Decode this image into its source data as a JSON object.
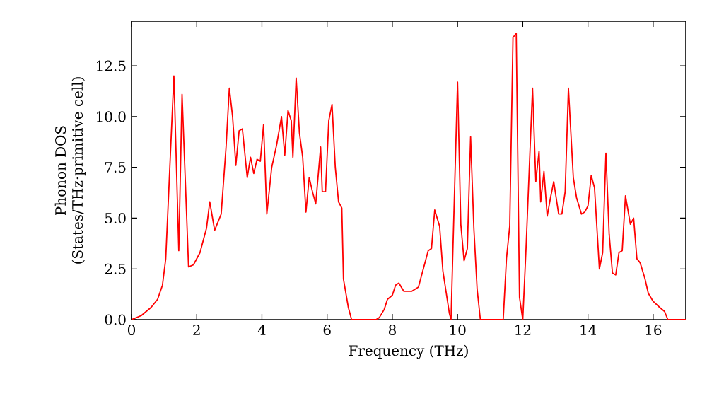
{
  "chart_data": {
    "type": "line",
    "xlabel": "Frequency (THz)",
    "ylabel": "Phonon DOS\n(States/THz·primitive cell)",
    "xlim": [
      0,
      17
    ],
    "ylim": [
      0,
      14.7
    ],
    "xticks": [
      0,
      2,
      4,
      6,
      8,
      10,
      12,
      14,
      16
    ],
    "yticks": [
      {
        "value": 0,
        "label": "0.0"
      },
      {
        "value": 2.5,
        "label": "2.5"
      },
      {
        "value": 5,
        "label": "5.0"
      },
      {
        "value": 7.5,
        "label": "7.5"
      },
      {
        "value": 10,
        "label": "10.0"
      },
      {
        "value": 12.5,
        "label": "12.5"
      }
    ],
    "marker": "none",
    "line_style": "solid",
    "series": [
      {
        "color": "#ff0000",
        "x": [
          0,
          0.3,
          0.6,
          0.8,
          0.95,
          1.05,
          1.3,
          1.45,
          1.55,
          1.75,
          1.9,
          2.1,
          2.3,
          2.4,
          2.55,
          2.75,
          2.9,
          3.0,
          3.1,
          3.2,
          3.3,
          3.4,
          3.55,
          3.65,
          3.75,
          3.85,
          3.95,
          4.05,
          4.15,
          4.3,
          4.45,
          4.6,
          4.7,
          4.8,
          4.9,
          4.95,
          5.05,
          5.15,
          5.25,
          5.35,
          5.45,
          5.55,
          5.65,
          5.8,
          5.85,
          5.95,
          6.05,
          6.15,
          6.25,
          6.35,
          6.45,
          6.5,
          6.65,
          6.75,
          7.5,
          7.6,
          7.75,
          7.85,
          8.0,
          8.1,
          8.2,
          8.35,
          8.6,
          8.8,
          8.95,
          9.1,
          9.2,
          9.3,
          9.45,
          9.55,
          9.75,
          9.8,
          9.85,
          10.0,
          10.1,
          10.2,
          10.3,
          10.4,
          10.5,
          10.6,
          10.7,
          11.4,
          11.5,
          11.6,
          11.7,
          11.8,
          11.9,
          12.0,
          12.1,
          12.3,
          12.4,
          12.5,
          12.55,
          12.65,
          12.75,
          12.85,
          12.95,
          13.1,
          13.2,
          13.3,
          13.4,
          13.55,
          13.65,
          13.8,
          13.9,
          14.0,
          14.1,
          14.2,
          14.35,
          14.45,
          14.55,
          14.65,
          14.75,
          14.85,
          14.95,
          15.05,
          15.15,
          15.3,
          15.4,
          15.5,
          15.6,
          15.75,
          15.85,
          16.0,
          16.2,
          16.35,
          16.45,
          17
        ],
        "values": [
          0,
          0.2,
          0.6,
          1.0,
          1.7,
          3.0,
          12.0,
          3.4,
          11.1,
          2.6,
          2.7,
          3.3,
          4.5,
          5.8,
          4.4,
          5.2,
          8.5,
          11.4,
          10.0,
          7.6,
          9.3,
          9.4,
          7.0,
          8.0,
          7.2,
          7.9,
          7.8,
          9.6,
          5.2,
          7.5,
          8.6,
          10.0,
          8.1,
          10.3,
          9.8,
          8.0,
          11.9,
          9.2,
          8.0,
          5.3,
          7.0,
          6.3,
          5.7,
          8.5,
          6.3,
          6.3,
          9.8,
          10.6,
          7.5,
          5.8,
          5.5,
          2.0,
          0.6,
          0,
          0,
          0.1,
          0.5,
          1.0,
          1.2,
          1.7,
          1.8,
          1.4,
          1.4,
          1.6,
          2.5,
          3.4,
          3.5,
          5.4,
          4.6,
          2.4,
          0.3,
          0,
          3.0,
          11.7,
          4.7,
          2.9,
          3.5,
          9.0,
          4.5,
          1.5,
          0,
          0,
          3.0,
          4.6,
          13.9,
          14.1,
          1.1,
          0,
          3.5,
          11.4,
          6.8,
          8.3,
          5.8,
          7.3,
          5.1,
          6.0,
          6.8,
          5.2,
          5.2,
          6.3,
          11.4,
          7.0,
          6.0,
          5.2,
          5.3,
          5.6,
          7.1,
          6.5,
          2.5,
          3.3,
          8.2,
          4.2,
          2.3,
          2.2,
          3.3,
          3.4,
          6.1,
          4.7,
          5.0,
          3.0,
          2.8,
          2.0,
          1.3,
          0.9,
          0.6,
          0.4,
          0,
          0
        ]
      }
    ]
  }
}
